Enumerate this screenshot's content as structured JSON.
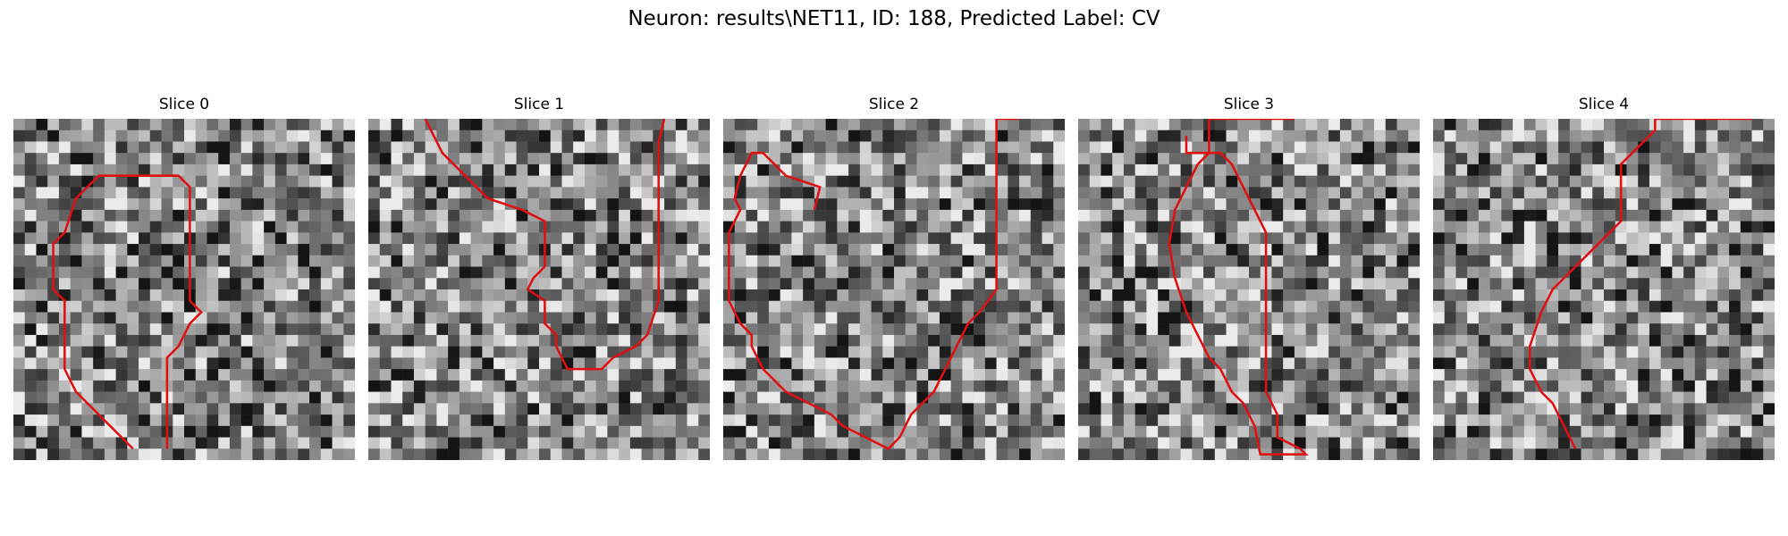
{
  "figure": {
    "title": "Neuron: results\\NET11, ID: 188, Predicted Label: CV"
  },
  "colors": {
    "contour": "#e01010",
    "background": "#ffffff"
  },
  "panels": [
    {
      "title": "Slice 0",
      "contour": [
        [
          10.5,
          29
        ],
        [
          8.5,
          27
        ],
        [
          5.5,
          24
        ],
        [
          4.5,
          22
        ],
        [
          4.5,
          16
        ],
        [
          3.5,
          15
        ],
        [
          3.5,
          11
        ],
        [
          4.5,
          10
        ],
        [
          5.5,
          7
        ],
        [
          6.5,
          6
        ],
        [
          7.5,
          5
        ],
        [
          14.5,
          5
        ],
        [
          15.5,
          6
        ],
        [
          15.5,
          16
        ],
        [
          16.5,
          17
        ],
        [
          15.5,
          18
        ],
        [
          15,
          19
        ],
        [
          14.5,
          20
        ],
        [
          13.5,
          21
        ],
        [
          13.5,
          29
        ]
      ]
    },
    {
      "title": "Slice 1",
      "contour": [
        [
          5,
          0
        ],
        [
          6.5,
          3
        ],
        [
          8.5,
          5
        ],
        [
          10.5,
          7
        ],
        [
          13.5,
          8
        ],
        [
          15.5,
          9
        ],
        [
          15.5,
          13
        ],
        [
          14.5,
          14
        ],
        [
          14,
          15
        ],
        [
          15.5,
          16
        ],
        [
          15.5,
          18
        ],
        [
          16.5,
          19
        ],
        [
          16.5,
          20
        ],
        [
          17.5,
          22
        ],
        [
          20.5,
          22
        ],
        [
          21.5,
          21
        ],
        [
          23.5,
          20
        ],
        [
          24.5,
          19
        ],
        [
          25.5,
          16
        ],
        [
          25.5,
          9
        ],
        [
          25.5,
          4
        ],
        [
          25.5,
          2
        ],
        [
          26,
          0
        ]
      ]
    },
    {
      "title": "Slice 2",
      "contour": [
        [
          8,
          8
        ],
        [
          8.5,
          6
        ],
        [
          5.5,
          5
        ],
        [
          4.5,
          4
        ],
        [
          3.5,
          3
        ],
        [
          2.5,
          3
        ],
        [
          1.5,
          5
        ],
        [
          1,
          7
        ],
        [
          1.5,
          8
        ],
        [
          0.5,
          10
        ],
        [
          0.5,
          16
        ],
        [
          1.5,
          18
        ],
        [
          2.5,
          19
        ],
        [
          2.5,
          20
        ],
        [
          3.5,
          22
        ],
        [
          5.5,
          24
        ],
        [
          7.5,
          25
        ],
        [
          9.5,
          26
        ],
        [
          10.5,
          27
        ],
        [
          12.5,
          28
        ],
        [
          14.5,
          29
        ],
        [
          15.5,
          28
        ],
        [
          16.5,
          26
        ],
        [
          17.5,
          25
        ],
        [
          18.5,
          24
        ],
        [
          19.5,
          22
        ],
        [
          20.5,
          20
        ],
        [
          21.5,
          18
        ],
        [
          22.5,
          17
        ],
        [
          24,
          15
        ],
        [
          24,
          0
        ],
        [
          26,
          0
        ]
      ]
    },
    {
      "title": "Slice 3",
      "contour": [
        [
          9.5,
          1.5
        ],
        [
          9.5,
          3
        ],
        [
          12.5,
          3
        ],
        [
          13.5,
          4
        ],
        [
          14.5,
          6
        ],
        [
          15.5,
          8
        ],
        [
          16.5,
          10
        ],
        [
          16.5,
          16
        ],
        [
          16.5,
          24
        ],
        [
          17.5,
          26
        ],
        [
          17.5,
          28
        ],
        [
          19.5,
          29
        ],
        [
          20,
          29.5
        ],
        [
          16,
          29.5
        ],
        [
          15.5,
          27
        ],
        [
          14.5,
          25
        ],
        [
          13.5,
          24
        ],
        [
          12.5,
          22
        ],
        [
          11.5,
          21
        ],
        [
          10.5,
          19
        ],
        [
          9.5,
          17
        ],
        [
          8.5,
          14
        ],
        [
          8,
          11
        ],
        [
          8.5,
          8
        ],
        [
          9.5,
          6
        ],
        [
          10.5,
          4
        ],
        [
          11.5,
          3
        ],
        [
          11.5,
          0
        ],
        [
          19,
          0
        ]
      ]
    },
    {
      "title": "Slice 4",
      "contour": [
        [
          12.5,
          29
        ],
        [
          11.5,
          27
        ],
        [
          10.5,
          25
        ],
        [
          9.5,
          24
        ],
        [
          8.5,
          22
        ],
        [
          8.5,
          20
        ],
        [
          9.5,
          17
        ],
        [
          10.5,
          15
        ],
        [
          11.5,
          14
        ],
        [
          12.5,
          13
        ],
        [
          13.5,
          12
        ],
        [
          14.5,
          11
        ],
        [
          15.5,
          10
        ],
        [
          16.5,
          9
        ],
        [
          16.5,
          6
        ],
        [
          16.5,
          4
        ],
        [
          17.5,
          3
        ],
        [
          18.5,
          2
        ],
        [
          19.5,
          1
        ],
        [
          19.5,
          0
        ],
        [
          28,
          0
        ]
      ]
    }
  ]
}
